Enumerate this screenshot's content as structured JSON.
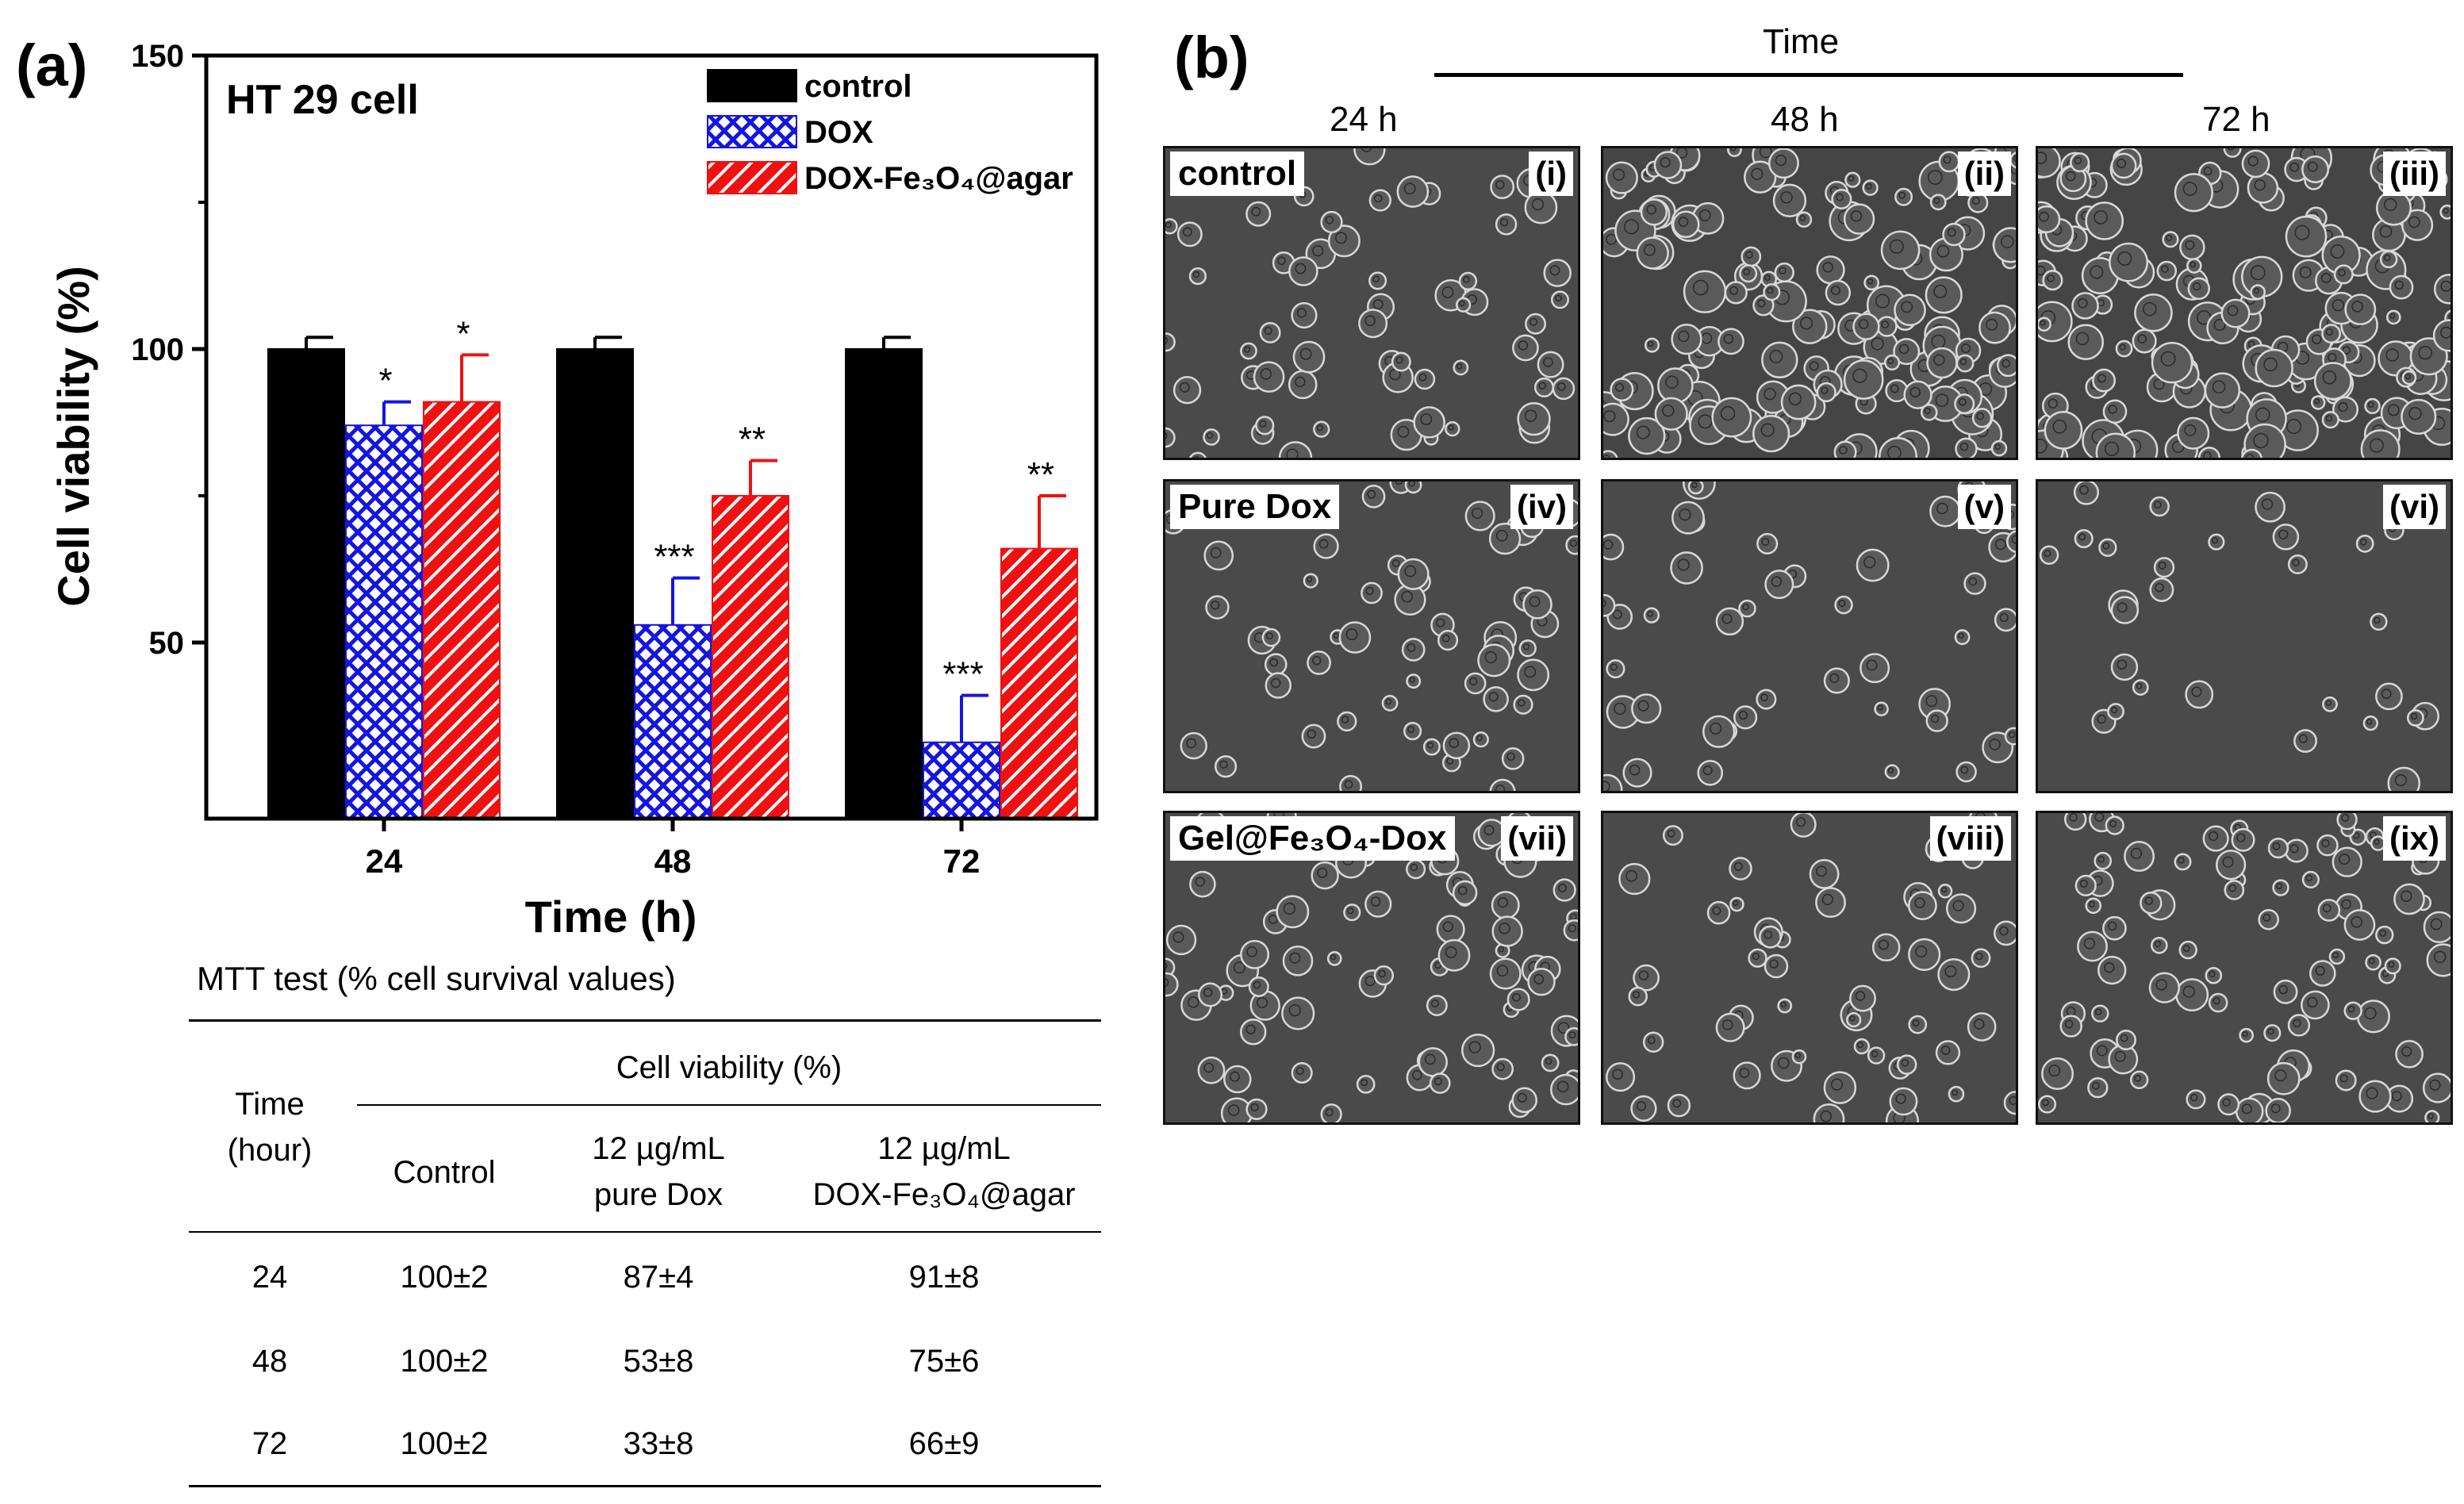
{
  "panel_a_label": "(a)",
  "panel_b_label": "(b)",
  "chart_data": {
    "type": "bar",
    "title": "HT 29 cell",
    "xlabel": "Time (h)",
    "ylabel": "Cell viability (%)",
    "ylim": [
      20,
      150
    ],
    "yticks": [
      "50",
      "100",
      "150"
    ],
    "categories": [
      "24",
      "48",
      "72"
    ],
    "legend_position": "top-right",
    "series": [
      {
        "name": "control",
        "pattern": "solid",
        "color": "#000000",
        "values": [
          100,
          100,
          100
        ],
        "errors": [
          2,
          2,
          2
        ],
        "significance": [
          "",
          "",
          ""
        ]
      },
      {
        "name": "DOX",
        "pattern": "crosshatch",
        "color": "#1515e0",
        "values": [
          87,
          53,
          33
        ],
        "errors": [
          4,
          8,
          8
        ],
        "significance": [
          "*",
          "***",
          "***"
        ]
      },
      {
        "name": "DOX-Fe₃O₄@agar",
        "pattern": "diagonal",
        "color": "#ee1111",
        "values": [
          91,
          75,
          66
        ],
        "errors": [
          8,
          6,
          9
        ],
        "significance": [
          "*",
          "**",
          "**"
        ]
      }
    ]
  },
  "table": {
    "title": "MTT test (% cell survival values)",
    "group_header": "Cell viability (%)",
    "time_header_line1": "Time",
    "time_header_line2": "(hour)",
    "col_control": "Control",
    "col_dox_line1": "12 µg/mL",
    "col_dox_line2": "pure Dox",
    "col_agar_line1": "12 µg/mL",
    "col_agar_line2": "DOX-Fe₃O₄@agar",
    "rows": [
      {
        "time": "24",
        "control": "100±2",
        "dox": "87±4",
        "agar": "91±8"
      },
      {
        "time": "48",
        "control": "100±2",
        "dox": "53±8",
        "agar": "75±6"
      },
      {
        "time": "72",
        "control": "100±2",
        "dox": "33±8",
        "agar": "66±9"
      }
    ]
  },
  "micrographs": {
    "time_title": "Time",
    "column_labels": [
      "24 h",
      "48 h",
      "72 h"
    ],
    "row_labels": [
      "control",
      "Pure Dox",
      "Gel@Fe₃O₄-Dox"
    ],
    "panel_numbers": [
      "(i)",
      "(ii)",
      "(iii)",
      "(iv)",
      "(v)",
      "(vi)",
      "(vii)",
      "(viii)",
      "(ix)"
    ]
  }
}
